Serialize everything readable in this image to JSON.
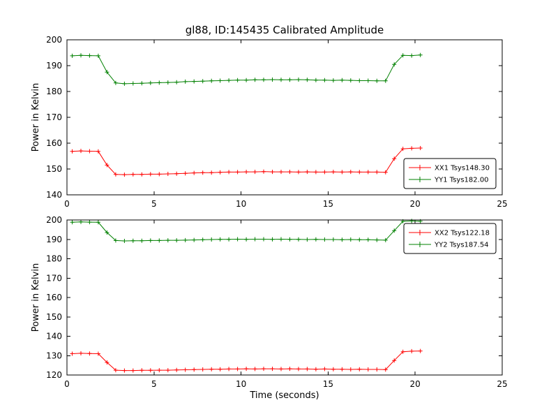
{
  "chart": {
    "title": "gl88, ID:145435 Calibrated Amplitude",
    "background": "#ffffff",
    "frame_color": "#000000"
  },
  "chart_data": [
    {
      "type": "line",
      "ylabel": "Power in Kelvin",
      "xlabel": "",
      "xlim": [
        0,
        25
      ],
      "ylim": [
        140,
        200
      ],
      "xticks": [
        0,
        5,
        10,
        15,
        20,
        25
      ],
      "yticks": [
        140,
        150,
        160,
        170,
        180,
        190,
        200
      ],
      "grid": false,
      "legend_position": "lower right",
      "x": [
        0.3,
        0.8,
        1.3,
        1.8,
        2.3,
        2.8,
        3.3,
        3.8,
        4.3,
        4.8,
        5.3,
        5.8,
        6.3,
        6.8,
        7.3,
        7.8,
        8.3,
        8.8,
        9.3,
        9.8,
        10.3,
        10.8,
        11.3,
        11.8,
        12.3,
        12.8,
        13.3,
        13.8,
        14.3,
        14.8,
        15.3,
        15.8,
        16.3,
        16.8,
        17.3,
        17.8,
        18.3,
        18.8,
        19.3,
        19.8,
        20.3
      ],
      "series": [
        {
          "name": "XX1 Tsys148.30",
          "color": "#ff0000",
          "marker": "+",
          "values": [
            156.8,
            157.0,
            156.9,
            156.8,
            151.5,
            147.9,
            147.8,
            147.9,
            147.9,
            148.0,
            148.0,
            148.1,
            148.2,
            148.3,
            148.5,
            148.6,
            148.6,
            148.7,
            148.8,
            148.8,
            148.9,
            148.9,
            149.0,
            148.9,
            148.9,
            148.9,
            148.8,
            148.9,
            148.8,
            148.8,
            148.9,
            148.8,
            148.9,
            148.8,
            148.8,
            148.8,
            148.7,
            154.0,
            157.8,
            158.0,
            158.1
          ]
        },
        {
          "name": "YY1 Tsys182.00",
          "color": "#008000",
          "marker": "+",
          "values": [
            193.8,
            194.0,
            193.9,
            193.8,
            187.5,
            183.3,
            183.0,
            183.1,
            183.2,
            183.3,
            183.4,
            183.5,
            183.6,
            183.8,
            183.9,
            184.0,
            184.1,
            184.2,
            184.3,
            184.4,
            184.4,
            184.5,
            184.5,
            184.6,
            184.5,
            184.5,
            184.6,
            184.5,
            184.4,
            184.4,
            184.3,
            184.4,
            184.3,
            184.2,
            184.2,
            184.1,
            184.1,
            190.5,
            194.0,
            193.9,
            194.1
          ]
        }
      ]
    },
    {
      "type": "line",
      "ylabel": "Power in Kelvin",
      "xlabel": "Time (seconds)",
      "xlim": [
        0,
        25
      ],
      "ylim": [
        120,
        200
      ],
      "xticks": [
        0,
        5,
        10,
        15,
        20,
        25
      ],
      "yticks": [
        120,
        130,
        140,
        150,
        160,
        170,
        180,
        190,
        200
      ],
      "grid": false,
      "legend_position": "upper right",
      "x": [
        0.3,
        0.8,
        1.3,
        1.8,
        2.3,
        2.8,
        3.3,
        3.8,
        4.3,
        4.8,
        5.3,
        5.8,
        6.3,
        6.8,
        7.3,
        7.8,
        8.3,
        8.8,
        9.3,
        9.8,
        10.3,
        10.8,
        11.3,
        11.8,
        12.3,
        12.8,
        13.3,
        13.8,
        14.3,
        14.8,
        15.3,
        15.8,
        16.3,
        16.8,
        17.3,
        17.8,
        18.3,
        18.8,
        19.3,
        19.8,
        20.3
      ],
      "series": [
        {
          "name": "XX2 Tsys122.18",
          "color": "#ff0000",
          "marker": "+",
          "values": [
            131.0,
            131.2,
            131.1,
            131.0,
            126.5,
            122.5,
            122.3,
            122.3,
            122.4,
            122.4,
            122.5,
            122.5,
            122.6,
            122.7,
            122.8,
            122.9,
            123.0,
            123.0,
            123.1,
            123.1,
            123.2,
            123.1,
            123.2,
            123.2,
            123.1,
            123.2,
            123.1,
            123.1,
            123.0,
            123.1,
            123.0,
            123.0,
            122.9,
            123.0,
            122.9,
            122.9,
            122.8,
            127.5,
            132.0,
            132.3,
            132.4
          ]
        },
        {
          "name": "YY2 Tsys187.54",
          "color": "#008000",
          "marker": "+",
          "values": [
            198.8,
            199.0,
            198.9,
            198.8,
            193.5,
            189.4,
            189.2,
            189.3,
            189.3,
            189.4,
            189.4,
            189.5,
            189.5,
            189.6,
            189.7,
            189.8,
            189.9,
            190.0,
            190.0,
            190.1,
            190.0,
            190.1,
            190.1,
            190.0,
            190.1,
            190.0,
            190.0,
            189.9,
            190.0,
            189.9,
            189.9,
            189.8,
            189.9,
            189.8,
            189.8,
            189.7,
            189.6,
            194.5,
            199.3,
            199.5,
            199.4
          ]
        }
      ]
    }
  ]
}
